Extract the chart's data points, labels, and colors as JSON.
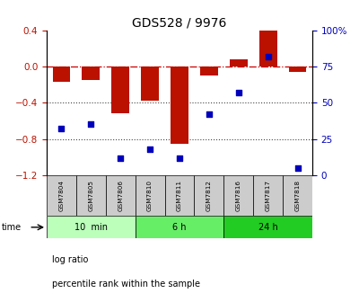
{
  "title": "GDS528 / 9976",
  "samples": [
    "GSM7804",
    "GSM7805",
    "GSM7806",
    "GSM7810",
    "GSM7811",
    "GSM7812",
    "GSM7816",
    "GSM7817",
    "GSM7818"
  ],
  "log_ratio": [
    -0.17,
    -0.15,
    -0.52,
    -0.38,
    -0.85,
    -0.1,
    0.08,
    0.4,
    -0.06
  ],
  "percentile_rank": [
    32,
    35,
    12,
    18,
    12,
    42,
    57,
    82,
    5
  ],
  "groups": [
    {
      "label": "10  min",
      "start": 0,
      "end": 2,
      "color": "#bbffbb"
    },
    {
      "label": "6 h",
      "start": 3,
      "end": 5,
      "color": "#66ee66"
    },
    {
      "label": "24 h",
      "start": 6,
      "end": 8,
      "color": "#22cc22"
    }
  ],
  "ylim_left": [
    -1.2,
    0.4
  ],
  "ylim_right": [
    0,
    100
  ],
  "bar_color": "#bb1100",
  "dot_color": "#0000bb",
  "dashed_line_color": "#cc0000",
  "dotted_line_color": "#444444",
  "left_tick_positions": [
    0.4,
    0.0,
    -0.4,
    -0.8,
    -1.2
  ],
  "right_tick_positions": [
    100,
    75,
    50,
    25,
    0
  ],
  "sample_box_color": "#cccccc",
  "background_color": "#ffffff"
}
